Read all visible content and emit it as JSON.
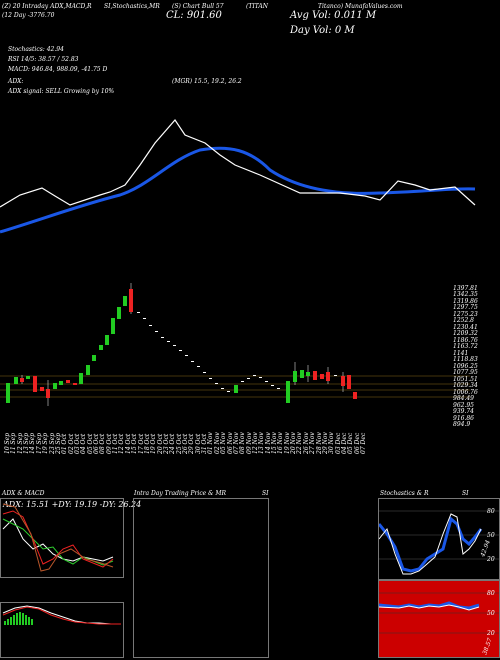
{
  "header": {
    "line1_left": "(Z) 20 Intraday ADX,MACD,R",
    "line1_mid": "SI,Stochastics,MR",
    "line1_mid2": "(S) Chart Bull 57",
    "line1_right": "(TITAN",
    "line1_far": "Titanco) MunafaValues.com",
    "line2_left": "(12  Day   -3776.70",
    "close_label": "CL: 901.60",
    "avg_vol": "Avg Vol: 0.011  M",
    "day_vol": "Day Vol: 0   M"
  },
  "indicators": {
    "stoch": "Stochastics: 42.94",
    "rsi": "RSI 14/5: 38.57 / 52.83",
    "macd": "MACD: 946.84, 988.09, -41.75 D",
    "adx": "ADX:",
    "mgr": "(MGR) 15.5,  19.2,  26.2",
    "adx_signal": "ADX  signal: SELL Growing by 10%"
  },
  "price_axis": [
    "1397.81",
    "1342.35",
    "1319.86",
    "1297.75",
    "1275.23",
    "1252.8",
    "1230.41",
    "1209.32",
    "1186.76",
    "1163.72",
    "1141",
    "1118.83",
    "1096.25",
    "1077.95",
    "1051.51",
    "1029.34",
    "1006.76",
    "984.49",
    "962.95",
    "939.74",
    "916.86",
    "894.9"
  ],
  "date_labels": [
    "10 Sep",
    "11 Sep",
    "12 Sep",
    "13 Sep",
    "14 Sep",
    "17 Sep",
    "19 Sep",
    "23 Sep",
    "25 Sep",
    "01 Oct",
    "02 Oct",
    "03 Oct",
    "04 Oct",
    "05 Oct",
    "06 Oct",
    "08 Oct",
    "09 Oct",
    "11 Oct",
    "12 Oct",
    "14 Oct",
    "15 Oct",
    "17 Oct",
    "18 Oct",
    "19 Oct",
    "20 Oct",
    "23 Oct",
    "24 Oct",
    "25 Oct",
    "26 Oct",
    "29 Oct",
    "30 Oct",
    "31 Oct",
    "01 Nov",
    "02 Nov",
    "05 Nov",
    "06 Nov",
    "07 Nov",
    "08 Nov",
    "09 Nov",
    "12 Nov",
    "13 Nov",
    "14 Nov",
    "15 Nov",
    "16 Nov",
    "19 Nov",
    "20 Nov",
    "22 Nov",
    "26 Nov",
    "27 Nov",
    "28 Nov",
    "29 Nov",
    "30 Nov",
    "03 Dec",
    "04 Dec",
    "05 Dec",
    "06 Dec",
    "07 Dec"
  ],
  "panels": {
    "adx_title": "ADX  & MACD",
    "adx_values": "ADX: 15.51  +DY: 19.19  -DY: 26.24",
    "intraday_title": "Intra  Day Trading Price  & MR",
    "intraday_si": "SI",
    "stoch_title": "Stochastics & R",
    "stoch_si": "SI",
    "stoch_scale": [
      "80",
      "50",
      "20"
    ],
    "stoch_value": "42.94",
    "rsi_scale": [
      "80",
      "50",
      "20"
    ],
    "rsi_value": "38.57"
  },
  "colors": {
    "up": "#22cc22",
    "down": "#ee2222",
    "ema": "#1a57e6",
    "rsi_fill": "#cc0000"
  }
}
